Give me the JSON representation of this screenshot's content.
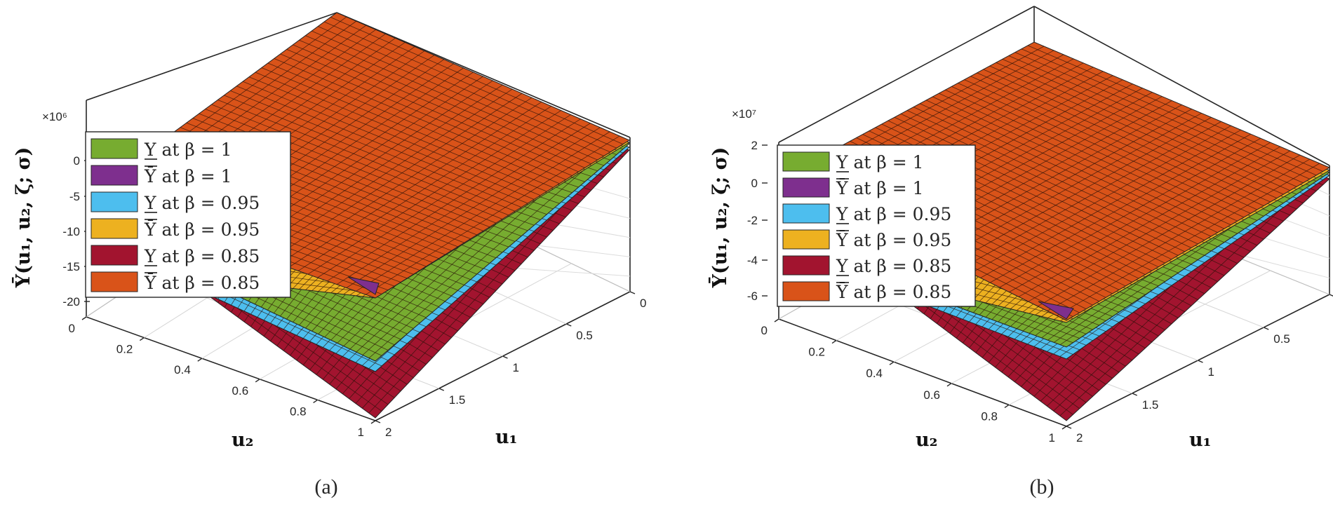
{
  "chart_data": [
    {
      "type": "surface3d",
      "caption": "(a)",
      "exponent_label": "×10⁶",
      "xlabel": "u₂",
      "ylabel": "u₁",
      "zlabel": "Ῡ(u₁, u₂, ζ; σ)",
      "u2_ticks": [
        "0",
        "0.2",
        "0.4",
        "0.6",
        "0.8",
        "1"
      ],
      "u1_ticks": [
        "0",
        "0.5",
        "1",
        "1.5",
        "2"
      ],
      "z_ticks": [
        "0",
        "-5",
        "-10",
        "-15",
        "-20"
      ],
      "xlim": [
        0,
        1
      ],
      "ylim": [
        0,
        2
      ],
      "zlim": [
        -20,
        0
      ],
      "grid": true,
      "legend": "left",
      "series": [
        {
          "name": "Υ at β = 1",
          "bar": "under",
          "beta": "1",
          "color": "#77AC30"
        },
        {
          "name": "Ῡ at β = 1",
          "bar": "over",
          "beta": "1",
          "color": "#7E2F8E"
        },
        {
          "name": "Υ at β = 0.95",
          "bar": "under",
          "beta": "0.95",
          "color": "#4DBEEE"
        },
        {
          "name": "Ῡ at β = 0.95",
          "bar": "over",
          "beta": "0.95",
          "color": "#EDB120"
        },
        {
          "name": "Υ at β = 0.85",
          "bar": "under",
          "beta": "0.85",
          "color": "#A2142F"
        },
        {
          "name": "Ῡ at β = 0.85",
          "bar": "over",
          "beta": "0.85",
          "color": "#D95319"
        }
      ]
    },
    {
      "type": "surface3d",
      "caption": "(b)",
      "exponent_label": "×10⁷",
      "xlabel": "u₂",
      "ylabel": "u₁",
      "zlabel": "Ῡ(u₁, u₂, ζ; σ)",
      "u2_ticks": [
        "0",
        "0.2",
        "0.4",
        "0.6",
        "0.8",
        "1"
      ],
      "u1_ticks": [
        "0",
        "0.5",
        "1",
        "1.5",
        "2"
      ],
      "z_ticks": [
        "2",
        "0",
        "-2",
        "-4",
        "-6"
      ],
      "xlim": [
        0,
        1
      ],
      "ylim": [
        0,
        2
      ],
      "zlim": [
        -6,
        2
      ],
      "grid": true,
      "legend": "left",
      "series": [
        {
          "name": "Υ at β = 1",
          "bar": "under",
          "beta": "1",
          "color": "#77AC30"
        },
        {
          "name": "Ῡ at β = 1",
          "bar": "over",
          "beta": "1",
          "color": "#7E2F8E"
        },
        {
          "name": "Υ at β = 0.95",
          "bar": "under",
          "beta": "0.95",
          "color": "#4DBEEE"
        },
        {
          "name": "Ῡ at β = 0.95",
          "bar": "over",
          "beta": "0.95",
          "color": "#EDB120"
        },
        {
          "name": "Υ at β = 0.85",
          "bar": "under",
          "beta": "0.85",
          "color": "#A2142F"
        },
        {
          "name": "Ῡ at β = 0.85",
          "bar": "over",
          "beta": "0.85",
          "color": "#D95319"
        }
      ]
    }
  ]
}
